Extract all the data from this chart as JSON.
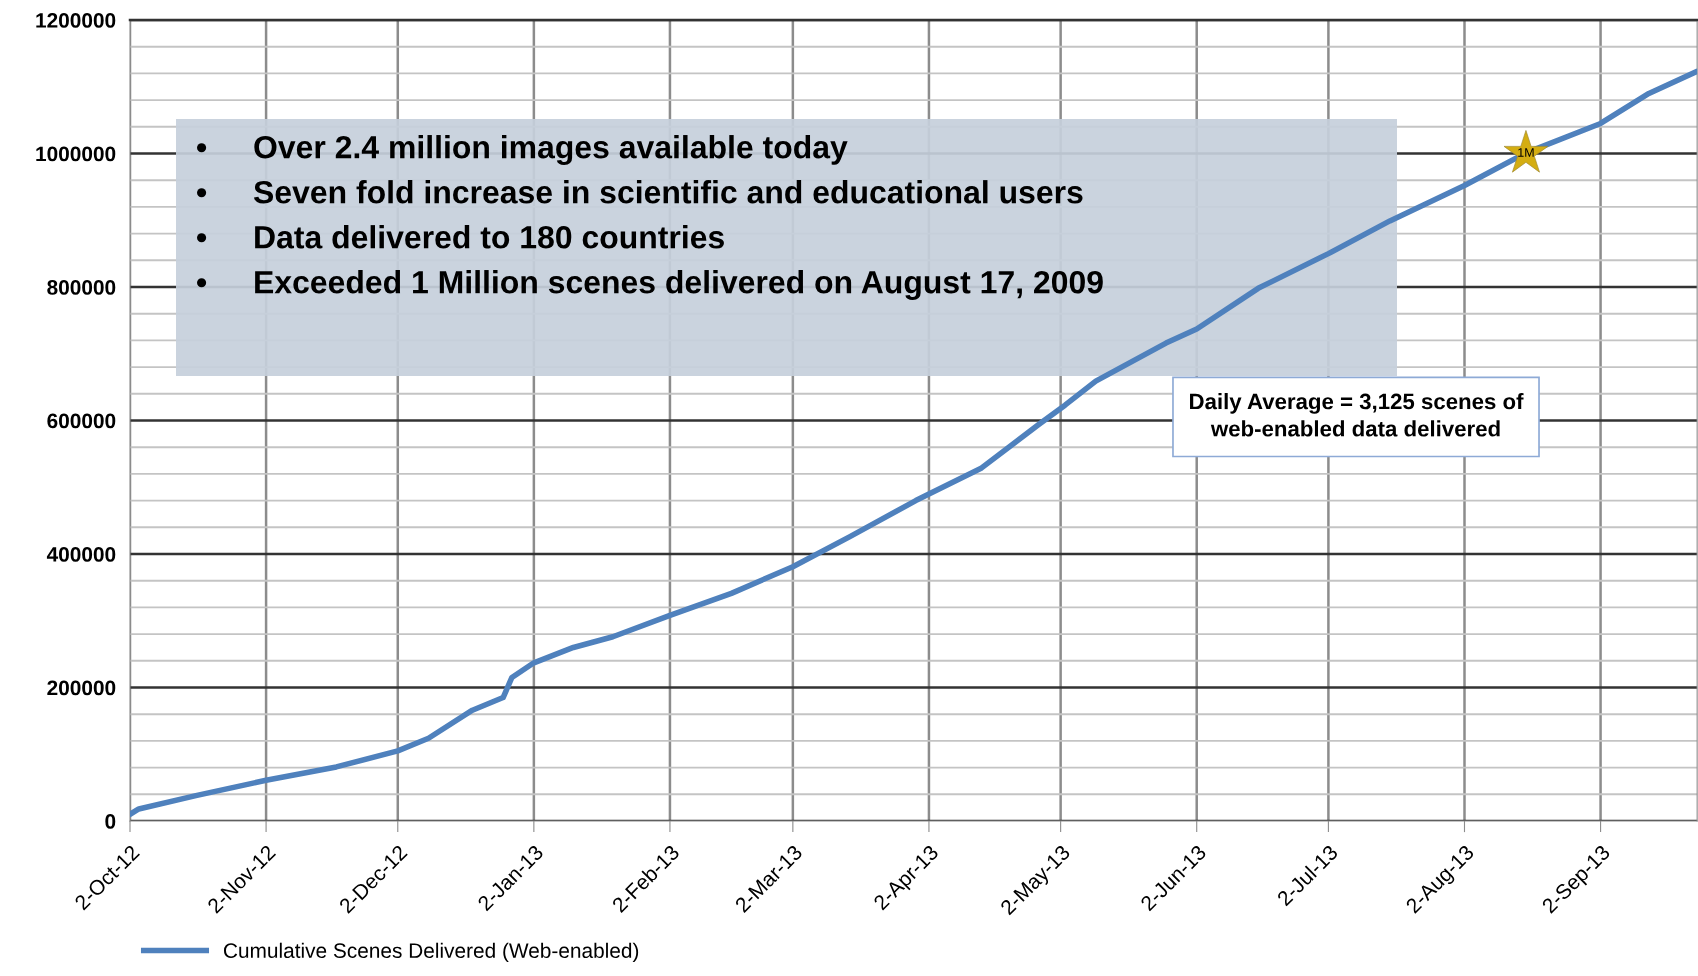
{
  "chart_data": {
    "type": "line",
    "x": [
      "2012-10-02",
      "2012-10-04",
      "2012-10-17",
      "2012-11-02",
      "2012-11-18",
      "2012-12-02",
      "2012-12-09",
      "2012-12-19",
      "2012-12-26",
      "2012-12-28",
      "2013-01-02",
      "2013-01-11",
      "2013-01-20",
      "2013-02-02",
      "2013-02-16",
      "2013-03-02",
      "2013-03-15",
      "2013-03-30",
      "2013-04-14",
      "2013-04-27",
      "2013-05-03",
      "2013-05-10",
      "2013-05-26",
      "2013-06-02",
      "2013-06-16",
      "2013-07-02",
      "2013-07-16",
      "2013-08-02",
      "2013-08-16",
      "2013-09-02",
      "2013-09-13",
      "2013-09-24"
    ],
    "series": [
      {
        "name": "Cumulative Scenes Delivered (Web-enabled)",
        "color": "#4f81bd",
        "values": [
          10000,
          18000,
          38000,
          61000,
          81000,
          105000,
          124000,
          166000,
          185000,
          215000,
          237000,
          260000,
          276000,
          308000,
          341000,
          381000,
          426000,
          480000,
          529000,
          594000,
          623000,
          659000,
          716000,
          737000,
          798000,
          850000,
          899000,
          952000,
          1001000,
          1045000,
          1090000,
          1123000
        ]
      }
    ],
    "xlim": [
      "2012-10-02",
      "2013-09-24"
    ],
    "xticks": [
      {
        "value": "2012-10-02",
        "label": "2-Oct-12"
      },
      {
        "value": "2012-11-02",
        "label": "2-Nov-12"
      },
      {
        "value": "2012-12-02",
        "label": "2-Dec-12"
      },
      {
        "value": "2013-01-02",
        "label": "2-Jan-13"
      },
      {
        "value": "2013-02-02",
        "label": "2-Feb-13"
      },
      {
        "value": "2013-03-02",
        "label": "2-Mar-13"
      },
      {
        "value": "2013-04-02",
        "label": "2-Apr-13"
      },
      {
        "value": "2013-05-02",
        "label": "2-May-13"
      },
      {
        "value": "2013-06-02",
        "label": "2-Jun-13"
      },
      {
        "value": "2013-07-02",
        "label": "2-Jul-13"
      },
      {
        "value": "2013-08-02",
        "label": "2-Aug-13"
      },
      {
        "value": "2013-09-02",
        "label": "2-Sep-13"
      }
    ],
    "ylim": [
      0,
      1200000
    ],
    "yticks": [
      0,
      200000,
      400000,
      600000,
      800000,
      1000000,
      1200000
    ],
    "grid": true,
    "legend": "bottom left",
    "marker": "none",
    "line_style": "solid",
    "annotations": [
      "• Over 2.4 million images available today",
      "• Seven fold increase in scientific and educational users",
      "• Data delivered to 180 countries",
      "• Exceeded 1 Million scenes delivered on August 17, 2009",
      "Daily Average = 3,125 scenes of\nweb-enabled data delivered",
      {
        "text": "1M",
        "x": "2013-08-16",
        "y": 1000000
      }
    ]
  }
}
